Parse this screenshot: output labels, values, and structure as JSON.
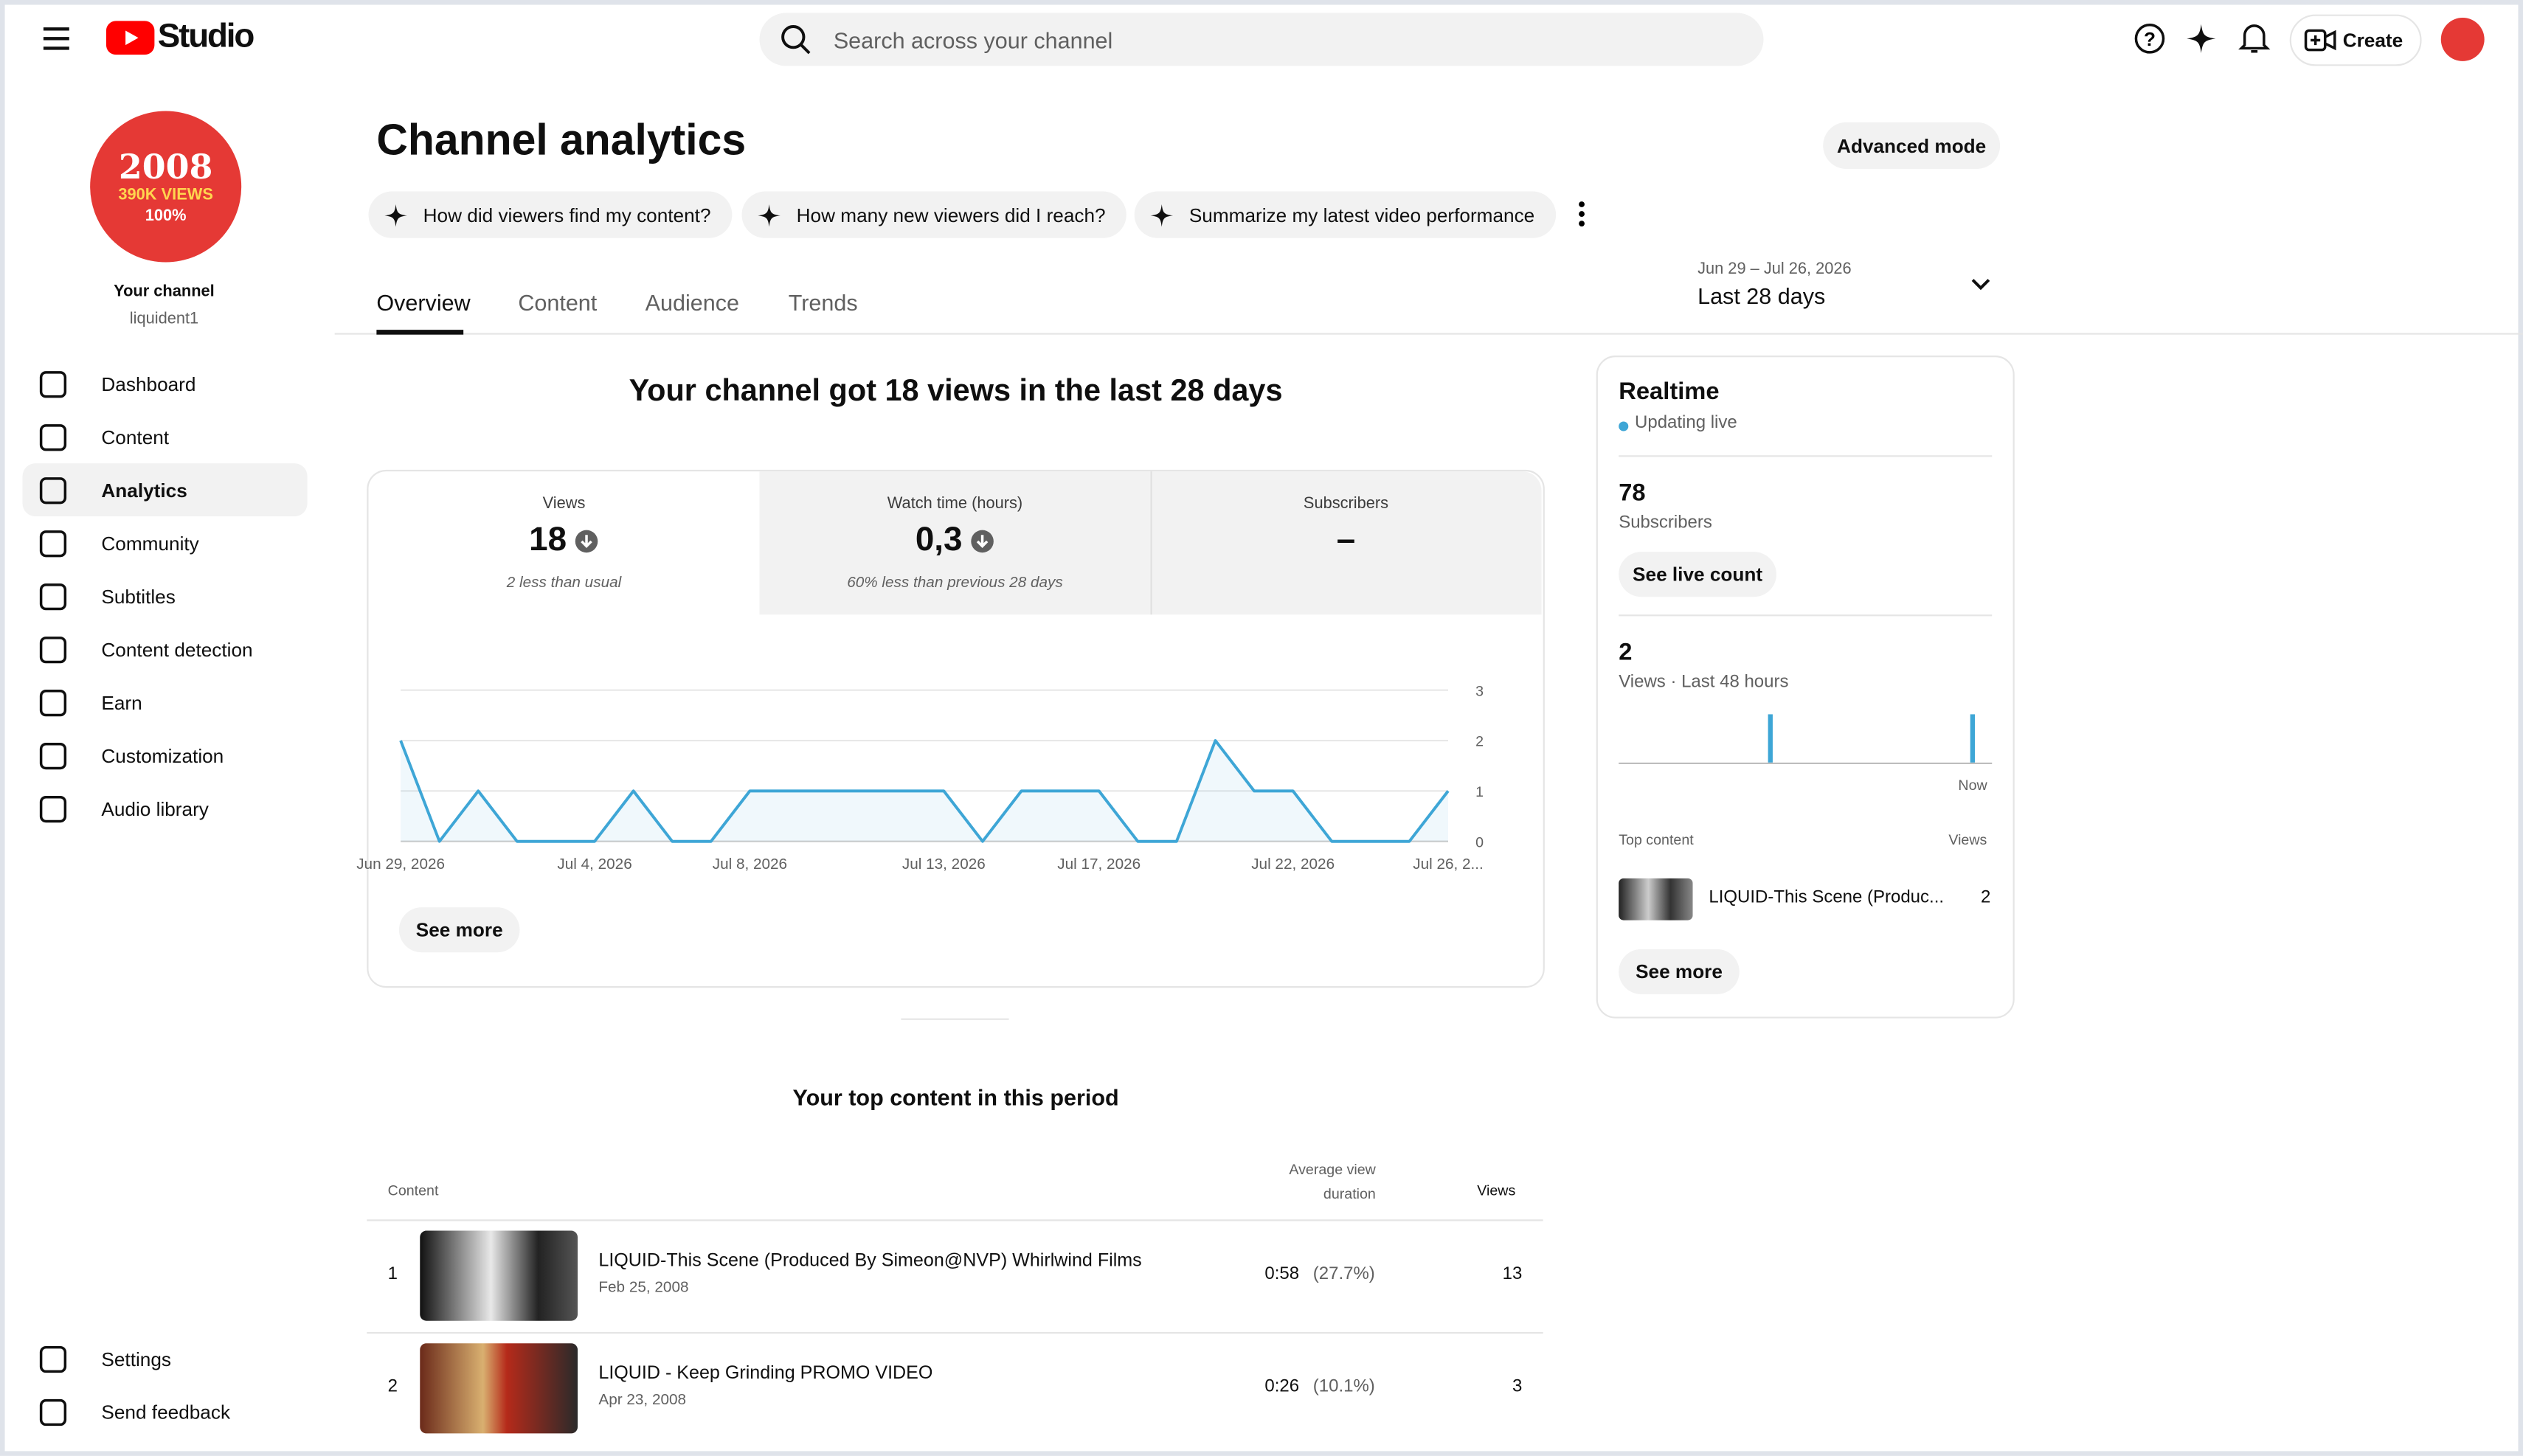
{
  "header": {
    "logo": "Studio",
    "search_placeholder": "Search across your channel",
    "create": "Create"
  },
  "sidebar": {
    "avatar": {
      "year": "2008",
      "views": "390K VIEWS",
      "percent": "100%"
    },
    "channel_label": "Your channel",
    "handle": "liquident1",
    "nav": [
      "Dashboard",
      "Content",
      "Analytics",
      "Community",
      "Subtitles",
      "Content detection",
      "Earn",
      "Customization",
      "Audio library"
    ],
    "active": 2,
    "footer_nav": [
      "Settings",
      "Send feedback"
    ]
  },
  "page": {
    "title": "Channel analytics",
    "advanced_mode": "Advanced mode",
    "suggestions": [
      "How did viewers find my content?",
      "How many new viewers did I reach?",
      "Summarize my latest video performance"
    ],
    "date_range": "Jun 29 – Jul 26, 2026",
    "period": "Last 28 days",
    "tabs": [
      "Overview",
      "Content",
      "Audience",
      "Trends"
    ],
    "active_tab": 0
  },
  "summary": {
    "headline": "Your channel got 18 views in the last 28 days",
    "metrics": [
      {
        "label": "Views",
        "value": "18",
        "note": "2 less than usual"
      },
      {
        "label": "Watch time (hours)",
        "value": "0,3",
        "note": "60% less than previous 28 days"
      },
      {
        "label": "Subscribers",
        "value": "–"
      }
    ],
    "see_more": "See more"
  },
  "chart_data": {
    "type": "line",
    "categories": [
      "Jun 29, 2026",
      null,
      null,
      null,
      null,
      "Jul 4, 2026",
      null,
      null,
      null,
      "Jul 8, 2026",
      null,
      null,
      null,
      null,
      "Jul 13, 2026",
      null,
      null,
      null,
      "Jul 17, 2026",
      null,
      null,
      null,
      null,
      "Jul 22, 2026",
      null,
      null,
      null,
      "Jul 26, 2..."
    ],
    "values": [
      2,
      0,
      1,
      0,
      0,
      0,
      1,
      0,
      0,
      1,
      1,
      1,
      1,
      1,
      1,
      0,
      1,
      1,
      1,
      0,
      0,
      2,
      1,
      1,
      0,
      0,
      0,
      1
    ],
    "color": "#3ea6d6",
    "ylim": [
      0,
      3
    ],
    "yticks": [
      0,
      1,
      2,
      3
    ],
    "grid": true
  },
  "realtime": {
    "title": "Realtime",
    "status": "Updating live",
    "subscribers": "78",
    "subscribers_label": "Subscribers",
    "see_live_count": "See live count",
    "views": "2",
    "views_label": "Views · Last 48 hours",
    "now": "Now",
    "chart": {
      "type": "bar",
      "values": [
        0,
        0,
        0,
        0,
        0,
        0,
        0,
        0,
        0,
        0,
        0,
        0,
        0,
        0,
        0,
        0,
        0,
        0,
        0,
        1,
        0,
        0,
        0,
        0,
        0,
        0,
        0,
        0,
        0,
        0,
        0,
        0,
        0,
        0,
        0,
        0,
        0,
        0,
        0,
        0,
        0,
        0,
        0,
        0,
        0,
        1,
        0,
        0
      ],
      "color": "#3ea6d6"
    },
    "top_content_label": "Top content",
    "views_column": "Views",
    "top_item": {
      "title": "LIQUID-This Scene (Produc...",
      "views": "2"
    },
    "see_more": "See more"
  },
  "top_content": {
    "title": "Your top content in this period",
    "columns": [
      "Content",
      "Average view duration",
      "Views"
    ],
    "rows": [
      {
        "rank": "1",
        "title": "LIQUID-This Scene (Produced By Simeon@NVP) Whirlwind Films",
        "date": "Feb 25, 2008",
        "duration": "0:58",
        "percent": "(27.7%)",
        "views": "13"
      },
      {
        "rank": "2",
        "title": "LIQUID - Keep Grinding PROMO VIDEO",
        "date": "Apr 23, 2008",
        "duration": "0:26",
        "percent": "(10.1%)",
        "views": "3"
      }
    ]
  }
}
